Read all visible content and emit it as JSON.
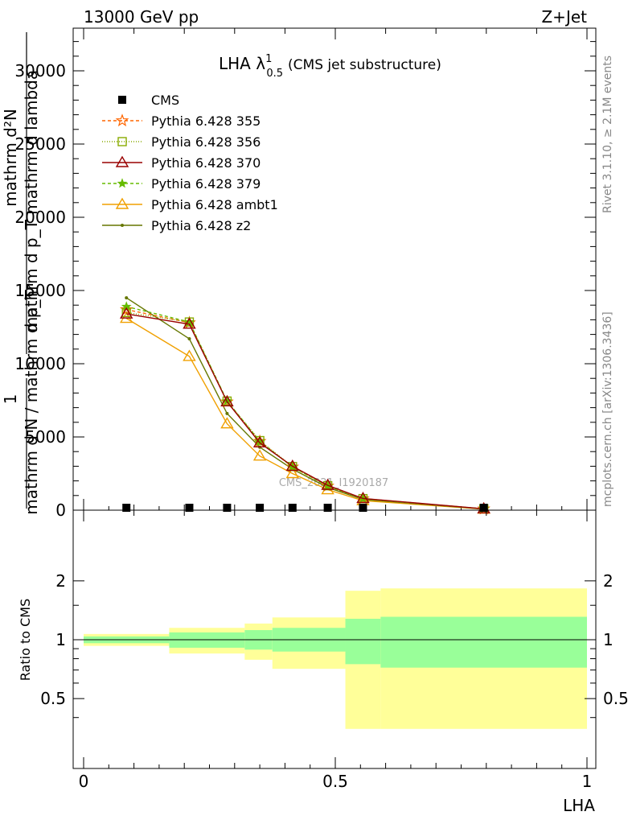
{
  "header": {
    "energy": "13000 GeV pp",
    "process": "Z+Jet"
  },
  "side": {
    "rivet": "Rivet 3.1.10, ≥ 2.1M events",
    "mcplots": "mcplots.cern.ch [arXiv:1306.3436]"
  },
  "watermark": "CMS_2021_I1920187",
  "colors": {
    "cms": "#000000",
    "p355": "#ff6600",
    "p356": "#88aa00",
    "p370": "#990000",
    "p379": "#66bb00",
    "ambt1": "#f0a000",
    "z2": "#667700",
    "band_inner": "#99ff99",
    "band_outer": "#ffff99"
  },
  "chart_data": [
    {
      "type": "line",
      "title": "LHA λ¹₀.₅ (CMS jet substructure)",
      "title_main": "LHA λ",
      "title_sup": "1",
      "title_sub": "0.5",
      "title_rest": "(CMS jet substructure)",
      "ylabel_top": "mathrm d²N",
      "ylabel_bottom": "mathrm d p_T mathrm d lambda",
      "ylabel_one": "1",
      "ylabel_denom": "mathrm d N / mathrm d p_T",
      "xlim": [
        0,
        1
      ],
      "ylim": [
        0,
        32500
      ],
      "yticks": [
        0,
        5000,
        10000,
        15000,
        20000,
        25000,
        30000
      ],
      "ytick_labels": [
        "0",
        "5000",
        "10000",
        "15000",
        "20000",
        "25000",
        "30000"
      ],
      "legend_position": "top-left",
      "series": [
        {
          "name": "CMS",
          "key": "cms",
          "marker": "square",
          "x": [
            0.085,
            0.21,
            0.285,
            0.35,
            0.415,
            0.485,
            0.555,
            0.795
          ],
          "y": [
            0,
            0,
            0,
            0,
            0,
            0,
            0,
            0
          ]
        },
        {
          "name": "Pythia 6.428 355",
          "key": "p355",
          "marker": "star",
          "dash": "4,3",
          "x": [
            0.085,
            0.21,
            0.285,
            0.35,
            0.415,
            0.485,
            0.555,
            0.795
          ],
          "y": [
            13700,
            12800,
            7400,
            4700,
            2950,
            1650,
            780,
            90
          ]
        },
        {
          "name": "Pythia 6.428 356",
          "key": "p356",
          "marker": "square-open",
          "dash": "1,2",
          "x": [
            0.085,
            0.21,
            0.285,
            0.35,
            0.415,
            0.485,
            0.555,
            0.795
          ],
          "y": [
            13500,
            12850,
            7450,
            4750,
            2980,
            1670,
            790,
            95
          ]
        },
        {
          "name": "Pythia 6.428 370",
          "key": "p370",
          "marker": "triangle-open",
          "dash": "",
          "x": [
            0.085,
            0.21,
            0.285,
            0.35,
            0.415,
            0.485,
            0.555,
            0.795
          ],
          "y": [
            13400,
            12700,
            7400,
            4600,
            3000,
            1700,
            800,
            95
          ]
        },
        {
          "name": "Pythia 6.428 379",
          "key": "p379",
          "marker": "star-small",
          "dash": "4,3",
          "x": [
            0.085,
            0.21,
            0.285,
            0.35,
            0.415,
            0.485,
            0.555,
            0.795
          ],
          "y": [
            13900,
            12850,
            7450,
            4700,
            2950,
            1650,
            780,
            90
          ]
        },
        {
          "name": "Pythia 6.428 ambt1",
          "key": "ambt1",
          "marker": "triangle-open",
          "dash": "",
          "x": [
            0.085,
            0.21,
            0.285,
            0.35,
            0.415,
            0.485,
            0.555,
            0.795
          ],
          "y": [
            13100,
            10500,
            5900,
            3700,
            2500,
            1400,
            650,
            70
          ]
        },
        {
          "name": "Pythia 6.428 z2",
          "key": "z2",
          "marker": "dot",
          "dash": "",
          "x": [
            0.085,
            0.21,
            0.285,
            0.35,
            0.415,
            0.485,
            0.555,
            0.795
          ],
          "y": [
            14500,
            11700,
            6600,
            4300,
            2800,
            1550,
            730,
            80
          ]
        }
      ]
    },
    {
      "type": "area",
      "ylabel": "Ratio to CMS",
      "xlabel": "LHA",
      "xlim": [
        0,
        1
      ],
      "ylim": [
        0.35,
        2.25
      ],
      "yticks": [
        0.5,
        1,
        2
      ],
      "ytick_labels": [
        "0.5",
        "1",
        "2"
      ],
      "xticks": [
        0,
        0.5,
        1
      ],
      "xtick_labels": [
        "0",
        "0.5",
        "1"
      ],
      "bins": [
        {
          "x0": 0.0,
          "x1": 0.17,
          "inner": [
            0.96,
            1.04
          ],
          "outer": [
            0.93,
            1.07
          ]
        },
        {
          "x0": 0.17,
          "x1": 0.32,
          "inner": [
            0.91,
            1.09
          ],
          "outer": [
            0.85,
            1.15
          ]
        },
        {
          "x0": 0.32,
          "x1": 0.375,
          "inner": [
            0.89,
            1.12
          ],
          "outer": [
            0.79,
            1.21
          ]
        },
        {
          "x0": 0.375,
          "x1": 0.52,
          "inner": [
            0.87,
            1.15
          ],
          "outer": [
            0.71,
            1.3
          ]
        },
        {
          "x0": 0.52,
          "x1": 0.59,
          "inner": [
            0.75,
            1.28
          ],
          "outer": [
            0.35,
            1.78
          ]
        },
        {
          "x0": 0.59,
          "x1": 1.0,
          "inner": [
            0.72,
            1.31
          ],
          "outer": [
            0.35,
            1.83
          ]
        }
      ],
      "reference": 1
    }
  ]
}
